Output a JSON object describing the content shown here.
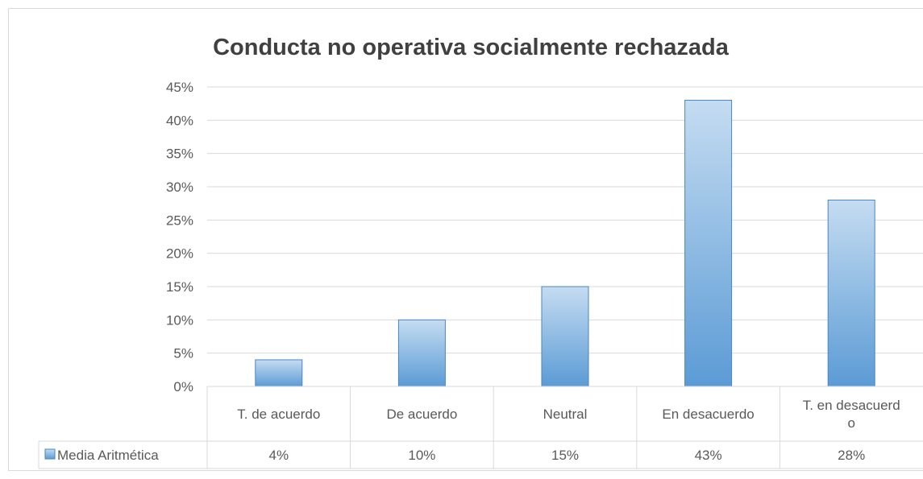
{
  "chart_data": {
    "type": "bar",
    "title": "Conducta no operativa socialmente rechazada",
    "xlabel": "",
    "ylabel": "",
    "ylim": [
      0,
      45
    ],
    "yticks": [
      "0%",
      "5%",
      "10%",
      "15%",
      "20%",
      "25%",
      "30%",
      "35%",
      "40%",
      "45%"
    ],
    "categories": [
      [
        "T. de acuerdo"
      ],
      [
        "De acuerdo"
      ],
      [
        "Neutral"
      ],
      [
        "En desacuerdo"
      ],
      [
        "T. en desacuerd",
        "o"
      ]
    ],
    "series": [
      {
        "name": "Media Aritmética",
        "values": [
          4,
          10,
          15,
          43,
          28
        ],
        "value_labels": [
          "4%",
          "10%",
          "15%",
          "43%",
          "28%"
        ]
      }
    ],
    "grid": true,
    "legend": "data-table-left",
    "colors": {
      "bar_top": "#c5dcf1",
      "bar_bottom": "#5b9bd5",
      "bar_edge": "#4a86c0"
    }
  }
}
